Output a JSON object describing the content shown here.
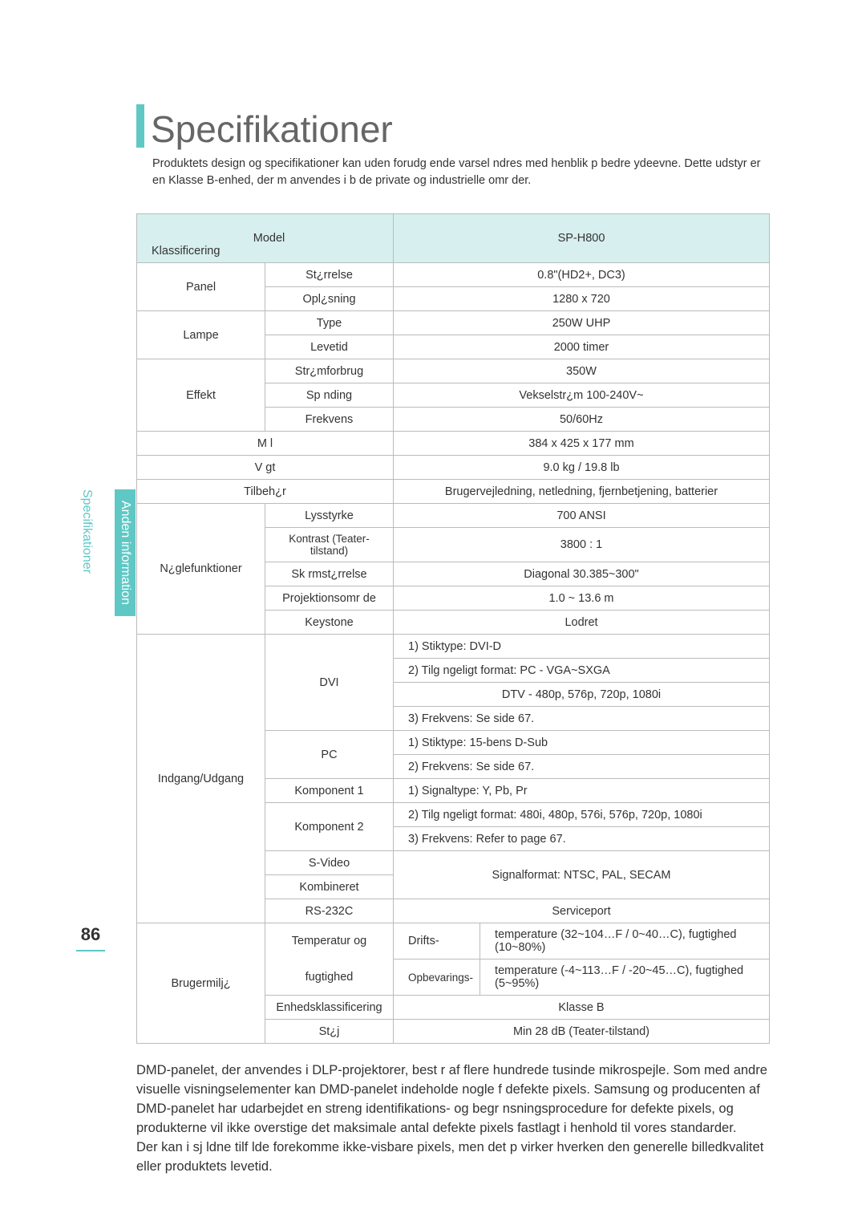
{
  "page_number": "86",
  "title": "Specifikationer",
  "intro": "Produktets design og specifikationer kan uden forudg ende varsel  ndres med henblik p  bedre ydeevne. Dette udstyr er en Klasse B-enhed, der m  anvendes i b de private og industrielle omr der.",
  "side_label_top": "Anden information",
  "side_label_bottom": "Specifikationer",
  "colors": {
    "accent": "#5fc8c5",
    "header_bg": "#d7efee",
    "border": "#bbbbbb",
    "text": "#333333"
  },
  "header": {
    "left_top": "Model",
    "left_bottom": "Klassificering",
    "right": "SP-H800"
  },
  "rows": {
    "panel": "Panel",
    "storrelse": "St¿rrelse",
    "storrelse_v": "0.8\"(HD2+, DC3)",
    "oplosning": "Opl¿sning",
    "oplosning_v": "1280 x 720",
    "lampe": "Lampe",
    "type": "Type",
    "type_v": "250W UHP",
    "levetid": "Levetid",
    "levetid_v": "2000 timer",
    "effekt": "Effekt",
    "stromforbrug": "Str¿mforbrug",
    "stromforbrug_v": "350W",
    "spanding": "Sp nding",
    "spanding_v": "Vekselstr¿m 100-240V~",
    "frekvens": "Frekvens",
    "frekvens_v": "50/60Hz",
    "ml": "M l",
    "ml_v": "384 x 425 x 177 mm",
    "vgt": "V gt",
    "vgt_v": "9.0 kg / 19.8 lb",
    "tilbehor": "Tilbeh¿r",
    "tilbehor_v": "Brugervejledning, netledning, fjernbetjening, batterier",
    "noglefunk": "N¿glefunktioner",
    "lysstyrke": "Lysstyrke",
    "lysstyrke_v": "700 ANSI",
    "kontrast": "Kontrast (Teater-tilstand)",
    "kontrast_v": "3800 : 1",
    "skrmstor": "Sk rmst¿rrelse",
    "skrmstor_v": "Diagonal 30.385~300\"",
    "projektion": "Projektionsomr de",
    "projektion_v": "1.0 ~ 13.6 m",
    "keystone": "Keystone",
    "keystone_v": "Lodret",
    "io": "Indgang/Udgang",
    "dvi": "DVI",
    "dvi_1": "1)  Stiktype: DVI-D",
    "dvi_2": "2)  Tilg ngeligt format:  PC - VGA~SXGA",
    "dvi_2b": "DTV - 480p, 576p, 720p, 1080i",
    "dvi_3": "3)  Frekvens: Se side 67.",
    "pc": "PC",
    "pc_1": "1)  Stiktype: 15-bens D-Sub",
    "pc_2": "2)  Frekvens: Se side 67.",
    "komp1": "Komponent 1",
    "komp2": "Komponent 2",
    "komp_1": "1)  Signaltype: Y, Pb, Pr",
    "komp_2": "2)  Tilg ngeligt format: 480i, 480p, 576i, 576p, 720p, 1080i",
    "komp_3": "3)  Frekvens: Refer to page 67.",
    "svideo": "S-Video",
    "kombineret": "Kombineret",
    "svideo_v": "Signalformat: NTSC, PAL, SECAM",
    "rs232c": "RS-232C",
    "rs232c_v": "Serviceport",
    "brugermiljo": "Brugermilj¿",
    "temp1": "Temperatur og",
    "temp2": "fugtighed",
    "drifts": "Drifts-",
    "drifts_v": "temperature (32~104…F / 0~40…C), fugtighed (10~80%)",
    "opbev": "Opbevarings-",
    "opbev_v": "temperature (-4~113…F / -20~45…C), fugtighed (5~95%)",
    "enhedskl": "Enhedsklassificering",
    "enhedskl_v": "Klasse B",
    "stoj": "St¿j",
    "stoj_v": "Min 28 dB (Teater-tilstand)"
  },
  "body1": "DMD-panelet, der anvendes i DLP-projektorer, best r af flere hundrede tusinde mikrospejle. Som med andre visuelle visningselementer kan DMD-panelet indeholde nogle f  defekte pixels. Samsung og producenten af DMD-panelet har udarbejdet en streng identifikations- og begr nsningsprocedure for defekte pixels, og produkterne vil ikke overstige det maksimale antal defekte pixels fastlagt i henhold til vores standarder.",
  "body2": "Der kan i sj ldne tilf lde forekomme ikke-visbare pixels, men det p virker hverken den generelle billedkvalitet eller produktets levetid."
}
